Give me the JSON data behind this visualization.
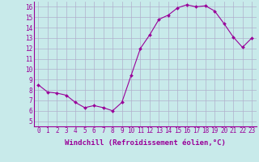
{
  "x": [
    0,
    1,
    2,
    3,
    4,
    5,
    6,
    7,
    8,
    9,
    10,
    11,
    12,
    13,
    14,
    15,
    16,
    17,
    18,
    19,
    20,
    21,
    22,
    23
  ],
  "y": [
    8.5,
    7.8,
    7.7,
    7.5,
    6.8,
    6.3,
    6.5,
    6.3,
    6.0,
    6.8,
    9.4,
    12.0,
    13.3,
    14.8,
    15.2,
    15.9,
    16.2,
    16.0,
    16.1,
    15.6,
    14.4,
    13.1,
    12.1,
    13.0
  ],
  "line_color": "#990099",
  "marker": "D",
  "marker_size": 2.0,
  "bg_color": "#c8eaea",
  "grid_color": "#b0b0cc",
  "xlabel": "Windchill (Refroidissement éolien,°C)",
  "xlim": [
    -0.5,
    23.5
  ],
  "ylim": [
    4.5,
    16.5
  ],
  "yticks": [
    5,
    6,
    7,
    8,
    9,
    10,
    11,
    12,
    13,
    14,
    15,
    16
  ],
  "xticks": [
    0,
    1,
    2,
    3,
    4,
    5,
    6,
    7,
    8,
    9,
    10,
    11,
    12,
    13,
    14,
    15,
    16,
    17,
    18,
    19,
    20,
    21,
    22,
    23
  ],
  "tick_fontsize": 5.5,
  "label_fontsize": 6.5
}
